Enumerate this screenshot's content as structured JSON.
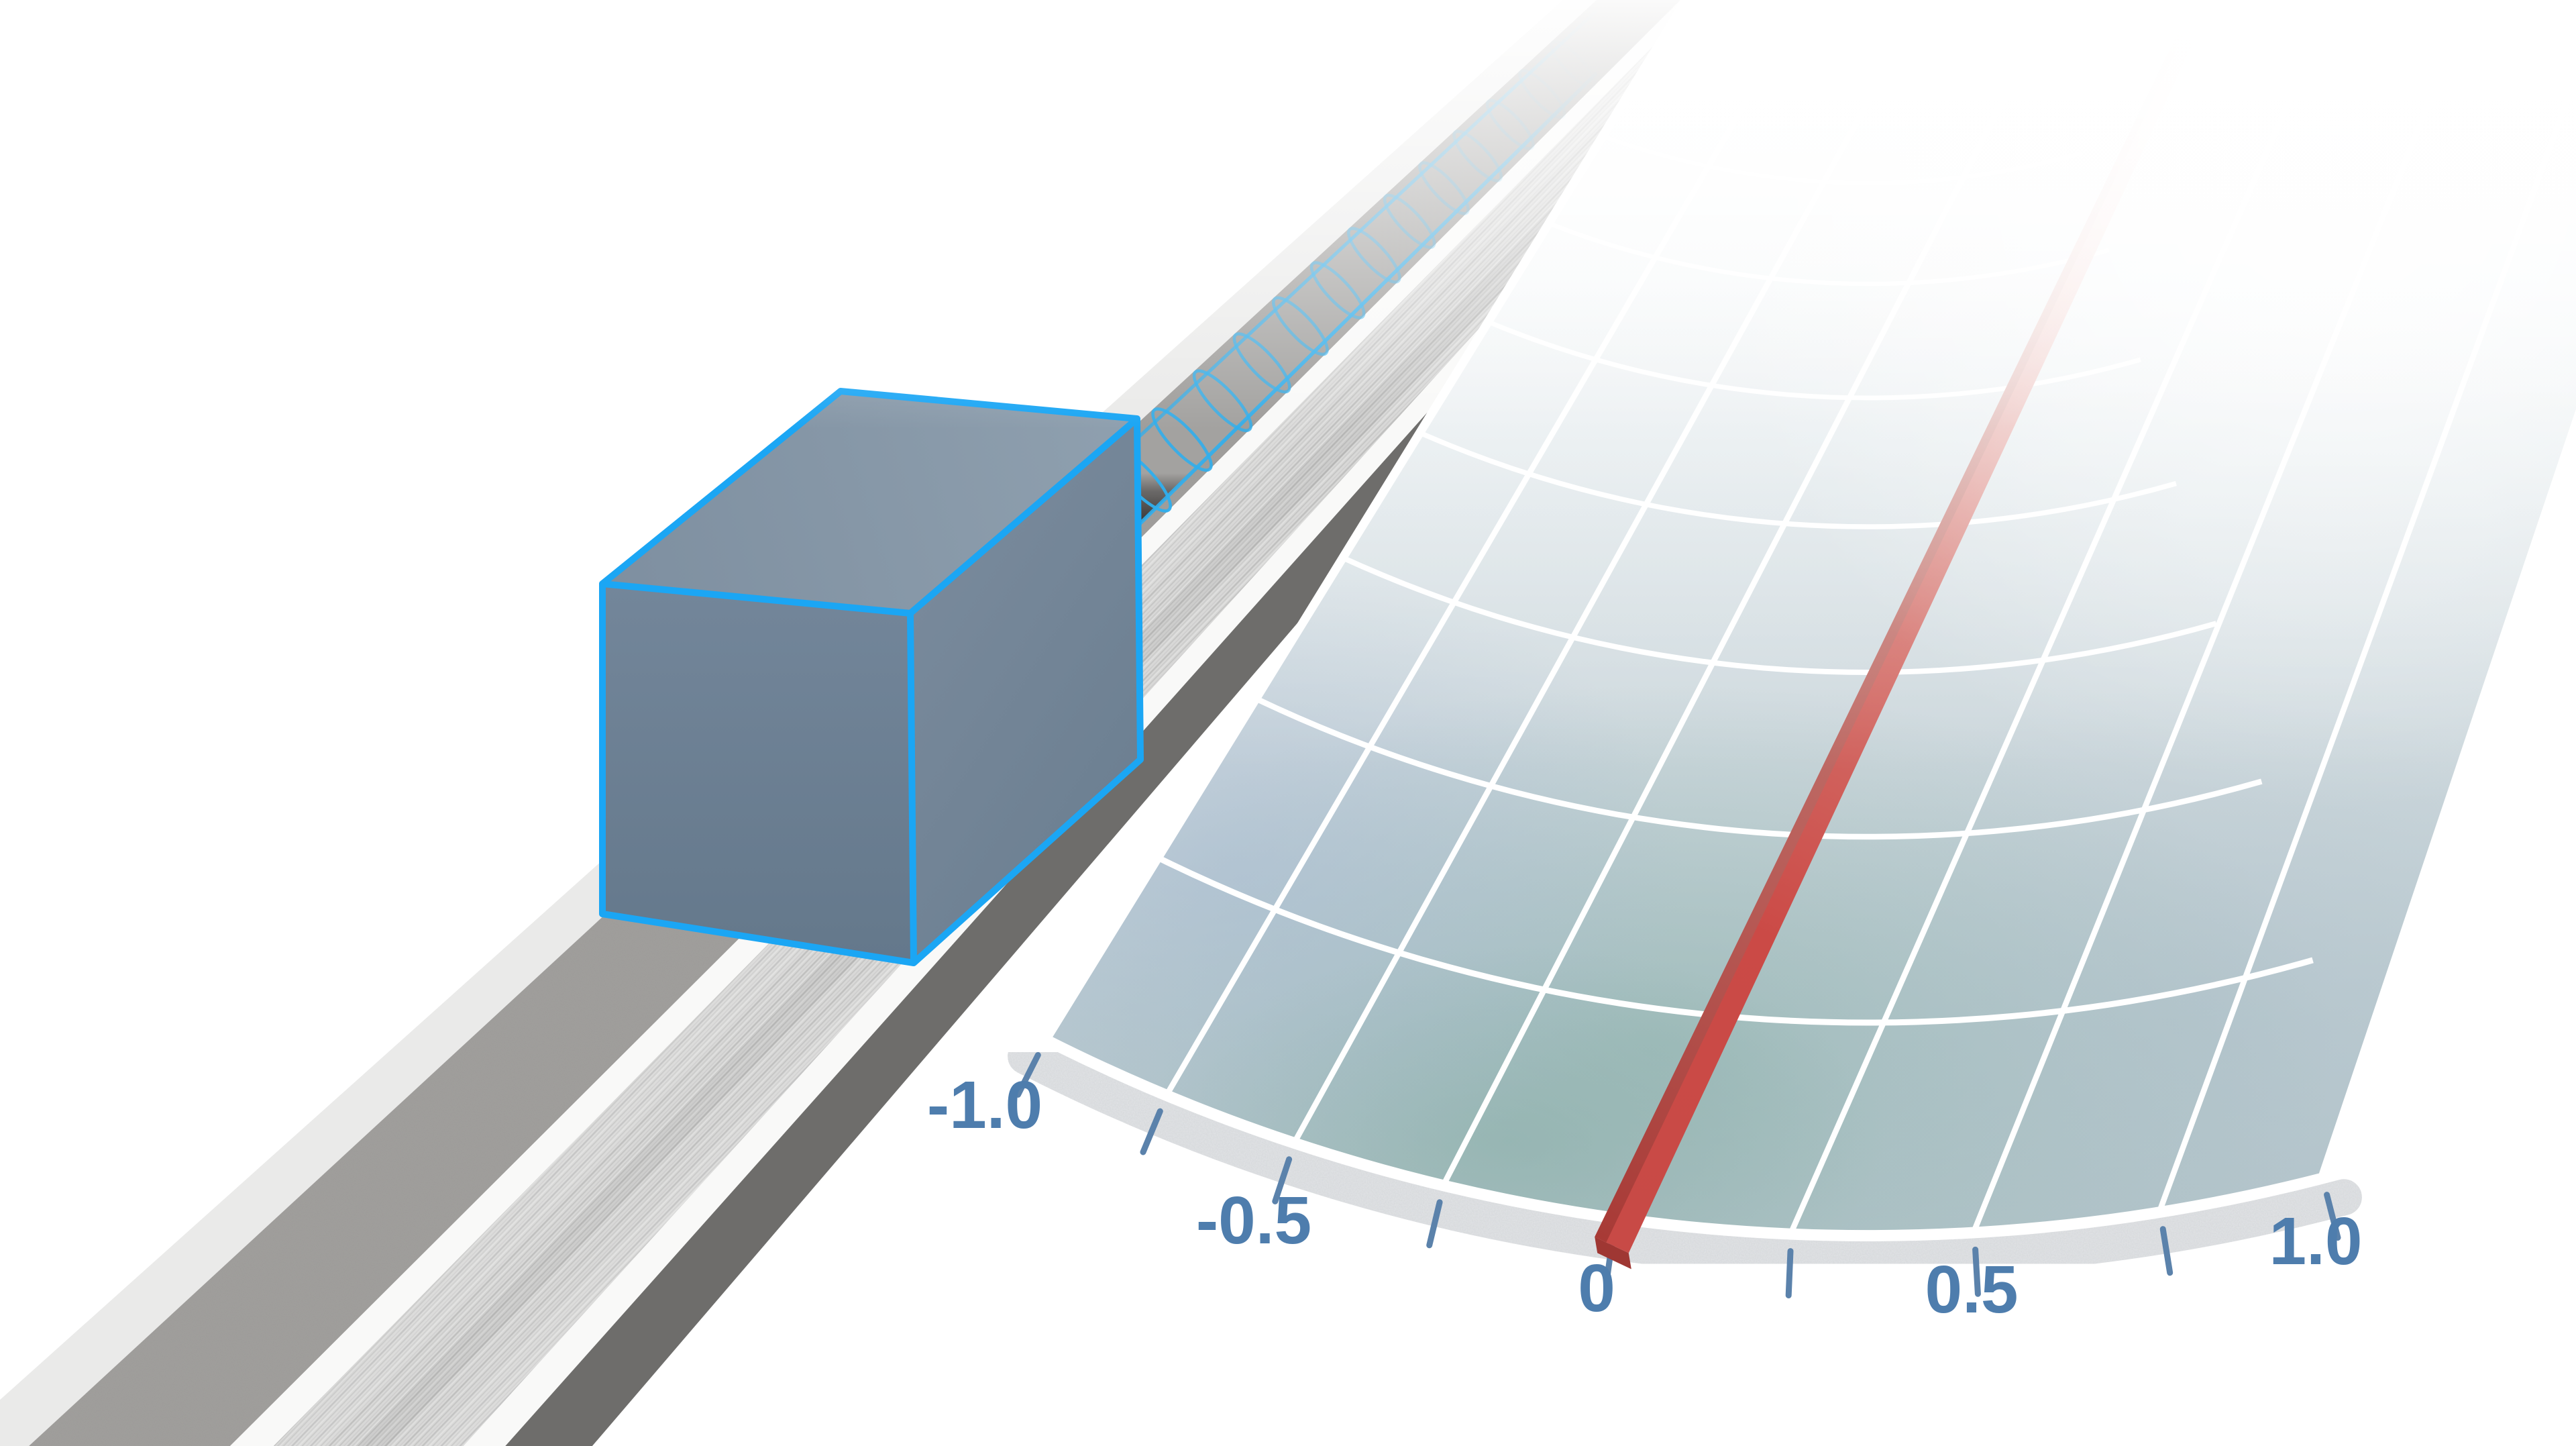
{
  "figure": {
    "kind": "physics-measurement-illustration",
    "background_color": "#ffffff"
  },
  "gauge": {
    "type": "fan-protractor-scale",
    "range": [
      -1.0,
      1.0
    ],
    "major_tick_labels": [
      "-1.0",
      "-0.5",
      "0",
      "0.5",
      "1.0"
    ],
    "major_tick_values": [
      -1.0,
      -0.5,
      0,
      0.5,
      1.0
    ],
    "minor_tick_step": 0.25,
    "needle_value": 0.0,
    "colors": {
      "needle_main": "#c84a46",
      "needle_dark": "#a83a36",
      "needle_tip": "#9f3733",
      "tick": "#5b82ab",
      "label": "#4e7dad",
      "grid_line": "#ffffff",
      "fan_base": "#b3c4ca",
      "fan_teal": "#90b4af",
      "rim_band": "#e2e4e6"
    }
  },
  "objects": {
    "cube": {
      "edge_color": "#1ba6f4",
      "face_front": "#6e8194",
      "face_top": "#8494a4",
      "face_right": "#73859a"
    },
    "wave_tube": {
      "ring_color": "#2fafee",
      "body_dark": "#403e3d",
      "body_light": "#a3a2a0"
    },
    "track": {
      "light_band": "#eaeae9",
      "gray_band": "#9d9b99",
      "white_band": "#f9f9f8",
      "stripe_base": "#d8d8d7",
      "stripe_line": "#c2c2c1",
      "dark_band": "#6e6d6b"
    }
  }
}
